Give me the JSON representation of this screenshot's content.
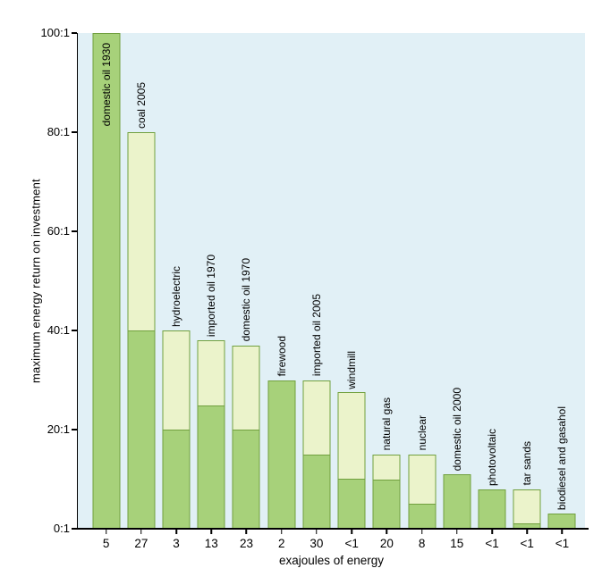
{
  "chart_data": {
    "type": "bar",
    "title": "",
    "xlabel": "exajoules of energy",
    "ylabel": "maximum energy return on investment",
    "ylim": [
      0,
      100
    ],
    "yticks": [
      {
        "value": 0,
        "label": "0:1"
      },
      {
        "value": 20,
        "label": "20:1"
      },
      {
        "value": 40,
        "label": "40:1"
      },
      {
        "value": 60,
        "label": "60:1"
      },
      {
        "value": 80,
        "label": "80:1"
      },
      {
        "value": 100,
        "label": "100:1"
      }
    ],
    "grid": false,
    "legend": "none",
    "series_note": "each bar shows a range: dark green = lower bound EROI, pale green extends to maximum EROI",
    "bars": [
      {
        "label": "domestic oil 1930",
        "exajoules": "5",
        "max_eroi": 100,
        "min_eroi": 100,
        "label_inside": true
      },
      {
        "label": "coal 2005",
        "exajoules": "27",
        "max_eroi": 80,
        "min_eroi": 40,
        "label_inside": false
      },
      {
        "label": "hydroelectric",
        "exajoules": "3",
        "max_eroi": 40,
        "min_eroi": 20,
        "label_inside": false
      },
      {
        "label": "imported oil 1970",
        "exajoules": "13",
        "max_eroi": 38,
        "min_eroi": 25,
        "label_inside": false
      },
      {
        "label": "domestic oil 1970",
        "exajoules": "23",
        "max_eroi": 37,
        "min_eroi": 20,
        "label_inside": false
      },
      {
        "label": "firewood",
        "exajoules": "2",
        "max_eroi": 30,
        "min_eroi": 30,
        "label_inside": false
      },
      {
        "label": "imported oil 2005",
        "exajoules": "30",
        "max_eroi": 30,
        "min_eroi": 15,
        "label_inside": false
      },
      {
        "label": "windmill",
        "exajoules": "<1",
        "max_eroi": 27.5,
        "min_eroi": 10,
        "label_inside": false
      },
      {
        "label": "natural gas",
        "exajoules": "20",
        "max_eroi": 15,
        "min_eroi": 10,
        "label_inside": false
      },
      {
        "label": "nuclear",
        "exajoules": "8",
        "max_eroi": 15,
        "min_eroi": 5,
        "label_inside": false
      },
      {
        "label": "domestic oil 2000",
        "exajoules": "15",
        "max_eroi": 11,
        "min_eroi": 11,
        "label_inside": false
      },
      {
        "label": "photovoltaic",
        "exajoules": "<1",
        "max_eroi": 8,
        "min_eroi": 8,
        "label_inside": false
      },
      {
        "label": "tar sands",
        "exajoules": "<1",
        "max_eroi": 8,
        "min_eroi": 1,
        "label_inside": false
      },
      {
        "label": "biodiesel and gasahol",
        "exajoules": "<1",
        "max_eroi": 3,
        "min_eroi": 3,
        "label_inside": false
      }
    ],
    "colors": {
      "plot_background": "#e1f0f6",
      "bar_range_fill": "#ebf3cb",
      "bar_min_fill": "#a7d17a",
      "bar_border": "#71a03f",
      "axis": "#000000",
      "text": "#000000",
      "page_background": "#ffffff"
    }
  }
}
